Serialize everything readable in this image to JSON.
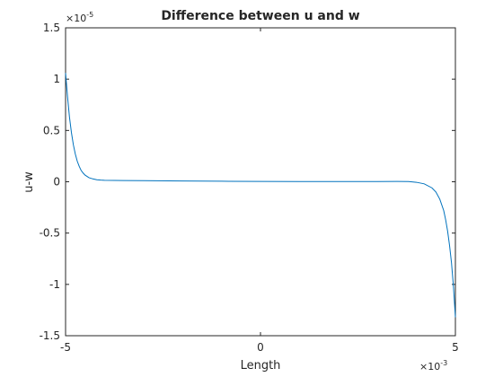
{
  "chart_data": {
    "type": "line",
    "title": "Difference between u and w",
    "xlabel": "Length",
    "ylabel": "u-w",
    "x_exponent": {
      "base": "×10",
      "power": "-3"
    },
    "y_exponent": {
      "base": "×10",
      "power": "-5"
    },
    "xlim": [
      -5,
      5
    ],
    "ylim": [
      -1.5,
      1.5
    ],
    "x_ticks": [
      -5,
      0,
      5
    ],
    "x_tick_labels": [
      "-5",
      "0",
      "5"
    ],
    "y_ticks": [
      -1.5,
      -1,
      -0.5,
      0,
      0.5,
      1,
      1.5
    ],
    "y_tick_labels": [
      "-1.5",
      "-1",
      "-0.5",
      "0",
      "0.5",
      "1",
      "1.5"
    ],
    "grid": false,
    "line_color": "#0072bd",
    "series": [
      {
        "x": [
          -5.0,
          -4.95,
          -4.9,
          -4.85,
          -4.8,
          -4.75,
          -4.7,
          -4.65,
          -4.6,
          -4.55,
          -4.5,
          -4.4,
          -4.3,
          -4.2,
          -4.1,
          -4.0,
          -3.5,
          -3.0,
          -2.0,
          -1.0,
          0.0,
          1.0,
          2.0,
          3.0,
          3.5,
          3.8,
          4.0,
          4.2,
          4.4,
          4.5,
          4.6,
          4.7,
          4.75,
          4.8,
          4.85,
          4.9,
          4.95,
          4.98,
          5.0
        ],
        "y": [
          1.06,
          0.83,
          0.63,
          0.48,
          0.36,
          0.27,
          0.2,
          0.15,
          0.11,
          0.085,
          0.065,
          0.04,
          0.028,
          0.02,
          0.016,
          0.014,
          0.012,
          0.011,
          0.008,
          0.005,
          0.003,
          0.002,
          0.002,
          0.002,
          0.003,
          0.002,
          -0.005,
          -0.02,
          -0.06,
          -0.1,
          -0.17,
          -0.28,
          -0.37,
          -0.48,
          -0.62,
          -0.79,
          -1.02,
          -1.2,
          -1.32
        ]
      }
    ]
  }
}
